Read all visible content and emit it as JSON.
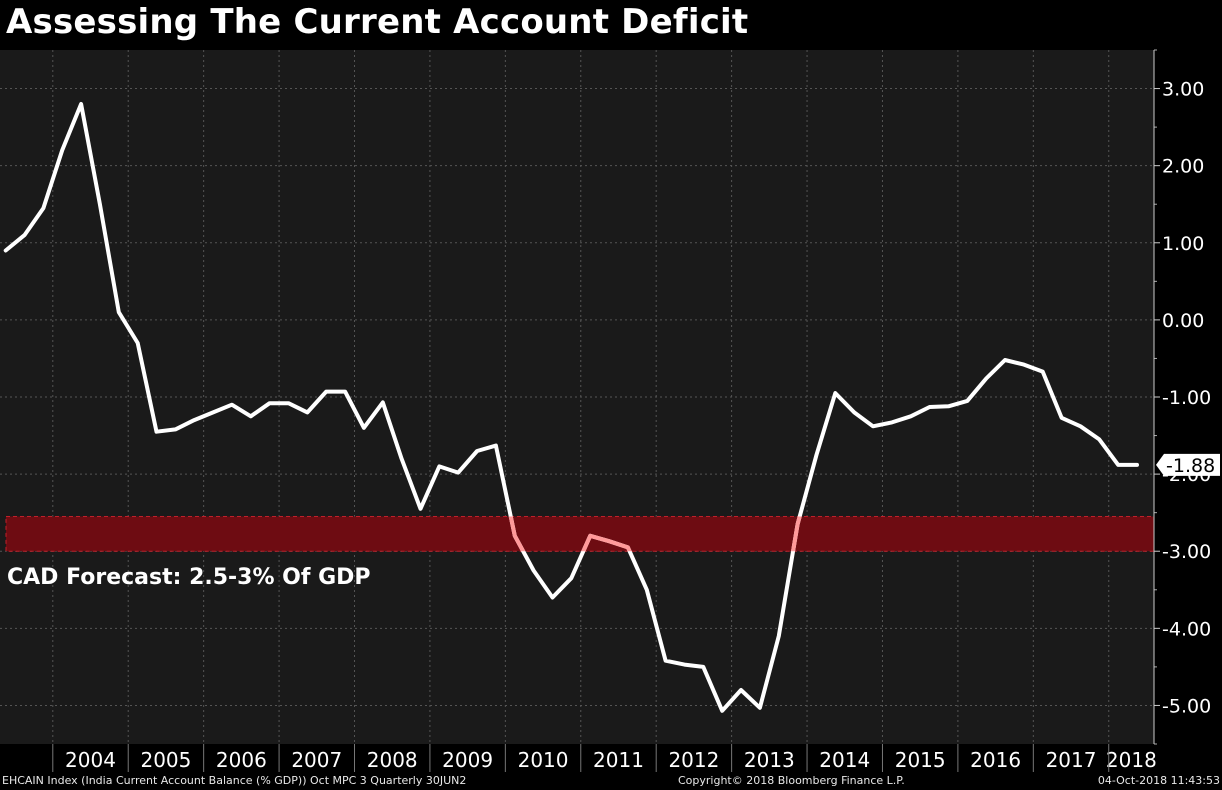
{
  "title": "Assessing The Current Account Deficit",
  "footer": {
    "source": "EHCAIN Index (India Current Account Balance (% GDP)) Oct MPC 3  Quarterly 30JUN2",
    "copyright": "Copyright© 2018 Bloomberg Finance L.P.",
    "timestamp": "04-Oct-2018 11:43:53"
  },
  "colors": {
    "background": "#000000",
    "plot_background": "#1a1a1a",
    "line": "#ffffff",
    "line_in_band": "#ff9a9a",
    "band_fill": "#6e0c12",
    "band_border": "#c0202a",
    "grid": "#555555"
  },
  "chart_data": {
    "type": "line",
    "title": "Assessing The Current Account Deficit",
    "xlabel": "",
    "ylabel": "",
    "x_range": [
      2003.3,
      2018.6
    ],
    "ylim": [
      -5.5,
      3.5
    ],
    "y_ticks": [
      3,
      2,
      1,
      0,
      -1,
      -2,
      -3,
      -4,
      -5
    ],
    "y_tick_labels": [
      "3.00",
      "2.00",
      "1.00",
      "0.00",
      "-1.00",
      "-2.00",
      "-3.00",
      "-4.00",
      "-5.00"
    ],
    "x_tick_labels": [
      "2004",
      "2005",
      "2006",
      "2007",
      "2008",
      "2009",
      "2010",
      "2011",
      "2012",
      "2013",
      "2014",
      "2015",
      "2016",
      "2017",
      "2018"
    ],
    "grid": true,
    "y_axis_position": "right",
    "series": [
      {
        "values": [
          [
            2003.375,
            0.9
          ],
          [
            2003.625,
            1.1
          ],
          [
            2003.875,
            1.45
          ],
          [
            2004.125,
            2.2
          ],
          [
            2004.375,
            2.8
          ],
          [
            2004.625,
            1.5
          ],
          [
            2004.875,
            0.1
          ],
          [
            2005.125,
            -0.3
          ],
          [
            2005.375,
            -1.45
          ],
          [
            2005.625,
            -1.42
          ],
          [
            2005.875,
            -1.3
          ],
          [
            2006.125,
            -1.2
          ],
          [
            2006.375,
            -1.1
          ],
          [
            2006.625,
            -1.25
          ],
          [
            2006.875,
            -1.08
          ],
          [
            2007.125,
            -1.08
          ],
          [
            2007.375,
            -1.2
          ],
          [
            2007.625,
            -0.93
          ],
          [
            2007.875,
            -0.93
          ],
          [
            2008.125,
            -1.4
          ],
          [
            2008.375,
            -1.07
          ],
          [
            2008.625,
            -1.8
          ],
          [
            2008.875,
            -2.45
          ],
          [
            2009.125,
            -1.9
          ],
          [
            2009.375,
            -1.98
          ],
          [
            2009.625,
            -1.7
          ],
          [
            2009.875,
            -1.63
          ],
          [
            2010.125,
            -2.8
          ],
          [
            2010.375,
            -3.25
          ],
          [
            2010.625,
            -3.6
          ],
          [
            2010.875,
            -3.35
          ],
          [
            2011.125,
            -2.8
          ],
          [
            2011.375,
            -2.87
          ],
          [
            2011.625,
            -2.95
          ],
          [
            2011.875,
            -3.5
          ],
          [
            2012.125,
            -4.42
          ],
          [
            2012.375,
            -4.47
          ],
          [
            2012.625,
            -4.5
          ],
          [
            2012.875,
            -5.07
          ],
          [
            2013.125,
            -4.8
          ],
          [
            2013.375,
            -5.03
          ],
          [
            2013.625,
            -4.1
          ],
          [
            2013.875,
            -2.65
          ],
          [
            2014.125,
            -1.75
          ],
          [
            2014.375,
            -0.95
          ],
          [
            2014.625,
            -1.2
          ],
          [
            2014.875,
            -1.38
          ],
          [
            2015.125,
            -1.33
          ],
          [
            2015.375,
            -1.25
          ],
          [
            2015.625,
            -1.13
          ],
          [
            2015.875,
            -1.12
          ],
          [
            2016.125,
            -1.05
          ],
          [
            2016.375,
            -0.76
          ],
          [
            2016.625,
            -0.52
          ],
          [
            2016.875,
            -0.58
          ],
          [
            2017.125,
            -0.67
          ],
          [
            2017.375,
            -1.27
          ],
          [
            2017.625,
            -1.38
          ],
          [
            2017.875,
            -1.55
          ],
          [
            2018.125,
            -1.88
          ],
          [
            2018.375,
            -1.88
          ]
        ]
      }
    ],
    "last_value_label": "-1.88",
    "band": {
      "y_from": -2.55,
      "y_to": -3.0
    },
    "annotations": [
      {
        "text": "CAD Forecast: 2.5-3% Of GDP"
      }
    ]
  }
}
